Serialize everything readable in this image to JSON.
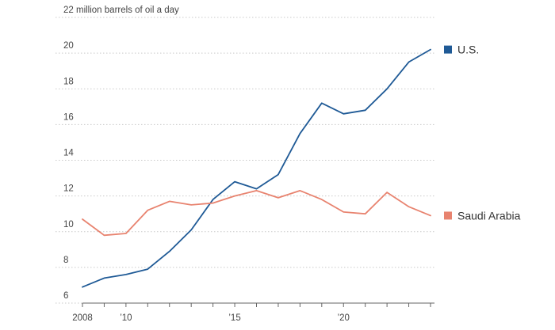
{
  "chart_data": {
    "type": "line",
    "title": "",
    "xlabel": "",
    "ylabel": "",
    "y_unit_label": "million barrels of oil a day",
    "ylim": [
      6,
      22
    ],
    "yticks": [
      {
        "value": 22,
        "label": "22 million barrels of oil a day"
      },
      {
        "value": 20,
        "label": "20"
      },
      {
        "value": 18,
        "label": "18"
      },
      {
        "value": 16,
        "label": "16"
      },
      {
        "value": 14,
        "label": "14"
      },
      {
        "value": 12,
        "label": "12"
      },
      {
        "value": 10,
        "label": "10"
      },
      {
        "value": 8,
        "label": "8"
      },
      {
        "value": 6,
        "label": "6"
      }
    ],
    "xlim": [
      2008,
      2024
    ],
    "xticks": [
      {
        "value": 2008,
        "label": "2008"
      },
      {
        "value": 2010,
        "label": "’10"
      },
      {
        "value": 2015,
        "label": "’15"
      },
      {
        "value": 2020,
        "label": "’20"
      }
    ],
    "x": [
      2008,
      2009,
      2010,
      2011,
      2012,
      2013,
      2014,
      2015,
      2016,
      2017,
      2018,
      2019,
      2020,
      2021,
      2022,
      2023,
      2024
    ],
    "series": [
      {
        "name": "U.S.",
        "color": "#1f5a96",
        "values": [
          6.9,
          7.4,
          7.6,
          7.9,
          8.9,
          10.1,
          11.8,
          12.8,
          12.4,
          13.2,
          15.5,
          17.2,
          16.6,
          16.8,
          18.0,
          19.5,
          20.2
        ]
      },
      {
        "name": "Saudi Arabia",
        "color": "#e8836f",
        "values": [
          10.7,
          9.8,
          9.9,
          11.2,
          11.7,
          11.5,
          11.6,
          12.0,
          12.3,
          11.9,
          12.3,
          11.8,
          11.1,
          11.0,
          12.2,
          11.4,
          10.9
        ]
      }
    ],
    "grid": true,
    "legend": "right"
  }
}
